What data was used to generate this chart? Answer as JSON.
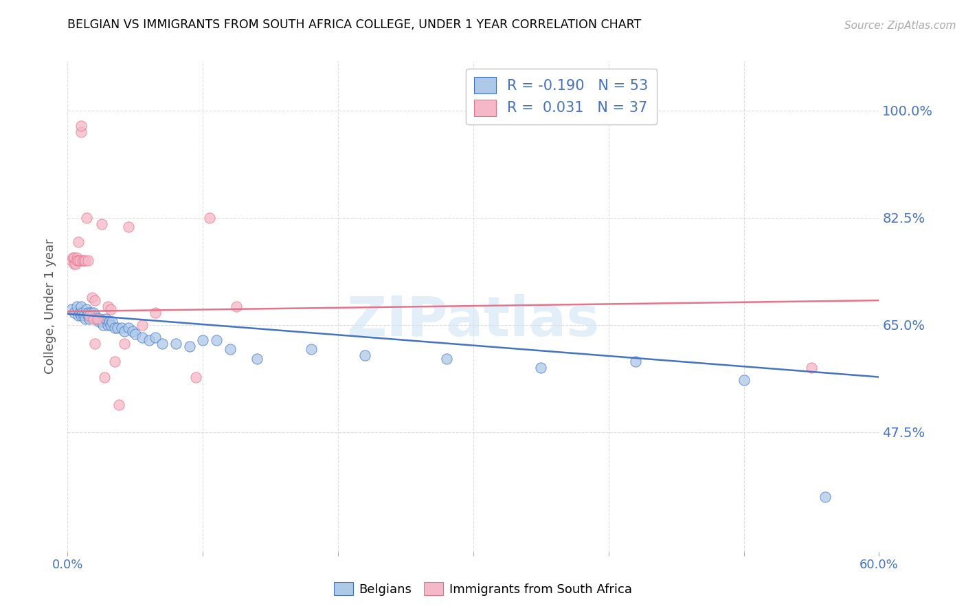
{
  "title": "BELGIAN VS IMMIGRANTS FROM SOUTH AFRICA COLLEGE, UNDER 1 YEAR CORRELATION CHART",
  "source": "Source: ZipAtlas.com",
  "ylabel": "College, Under 1 year",
  "ytick_labels": [
    "47.5%",
    "65.0%",
    "82.5%",
    "100.0%"
  ],
  "ytick_values": [
    0.475,
    0.65,
    0.825,
    1.0
  ],
  "xlim": [
    0.0,
    0.6
  ],
  "ylim": [
    0.28,
    1.08
  ],
  "watermark": "ZIPatlas",
  "legend_r_belgian": "-0.190",
  "legend_n_belgian": "53",
  "legend_r_sa": "0.031",
  "legend_n_sa": "37",
  "belgian_color": "#adc9e8",
  "sa_color": "#f5b8c8",
  "line_belgian_color": "#4472c4",
  "line_sa_color": "#e8728a",
  "belgian_x": [
    0.003,
    0.005,
    0.007,
    0.008,
    0.009,
    0.01,
    0.01,
    0.011,
    0.012,
    0.013,
    0.014,
    0.015,
    0.015,
    0.016,
    0.017,
    0.018,
    0.019,
    0.02,
    0.021,
    0.022,
    0.023,
    0.024,
    0.025,
    0.026,
    0.028,
    0.03,
    0.031,
    0.032,
    0.033,
    0.035,
    0.037,
    0.04,
    0.042,
    0.045,
    0.048,
    0.05,
    0.055,
    0.06,
    0.065,
    0.07,
    0.08,
    0.09,
    0.1,
    0.11,
    0.12,
    0.14,
    0.18,
    0.22,
    0.28,
    0.35,
    0.42,
    0.5,
    0.56
  ],
  "belgian_y": [
    0.675,
    0.67,
    0.68,
    0.665,
    0.67,
    0.68,
    0.665,
    0.67,
    0.665,
    0.66,
    0.675,
    0.665,
    0.67,
    0.66,
    0.67,
    0.665,
    0.67,
    0.665,
    0.66,
    0.66,
    0.655,
    0.66,
    0.655,
    0.65,
    0.66,
    0.65,
    0.655,
    0.65,
    0.655,
    0.645,
    0.645,
    0.645,
    0.64,
    0.645,
    0.64,
    0.635,
    0.63,
    0.625,
    0.63,
    0.62,
    0.62,
    0.615,
    0.625,
    0.625,
    0.61,
    0.595,
    0.61,
    0.6,
    0.595,
    0.58,
    0.59,
    0.56,
    0.37
  ],
  "sa_x": [
    0.003,
    0.004,
    0.005,
    0.005,
    0.006,
    0.007,
    0.007,
    0.008,
    0.008,
    0.009,
    0.01,
    0.01,
    0.011,
    0.012,
    0.013,
    0.014,
    0.015,
    0.016,
    0.018,
    0.019,
    0.02,
    0.02,
    0.022,
    0.025,
    0.027,
    0.03,
    0.032,
    0.035,
    0.038,
    0.042,
    0.045,
    0.055,
    0.065,
    0.095,
    0.105,
    0.125,
    0.55
  ],
  "sa_y": [
    0.755,
    0.76,
    0.75,
    0.76,
    0.75,
    0.76,
    0.755,
    0.785,
    0.755,
    0.755,
    0.965,
    0.975,
    0.755,
    0.755,
    0.755,
    0.825,
    0.755,
    0.665,
    0.695,
    0.66,
    0.69,
    0.62,
    0.66,
    0.815,
    0.565,
    0.68,
    0.675,
    0.59,
    0.52,
    0.62,
    0.81,
    0.65,
    0.67,
    0.565,
    0.825,
    0.68,
    0.58
  ],
  "belgian_trend_x": [
    0.0,
    0.6
  ],
  "belgian_trend_y": [
    0.668,
    0.565
  ],
  "sa_trend_x": [
    0.0,
    0.6
  ],
  "sa_trend_y": [
    0.672,
    0.69
  ]
}
